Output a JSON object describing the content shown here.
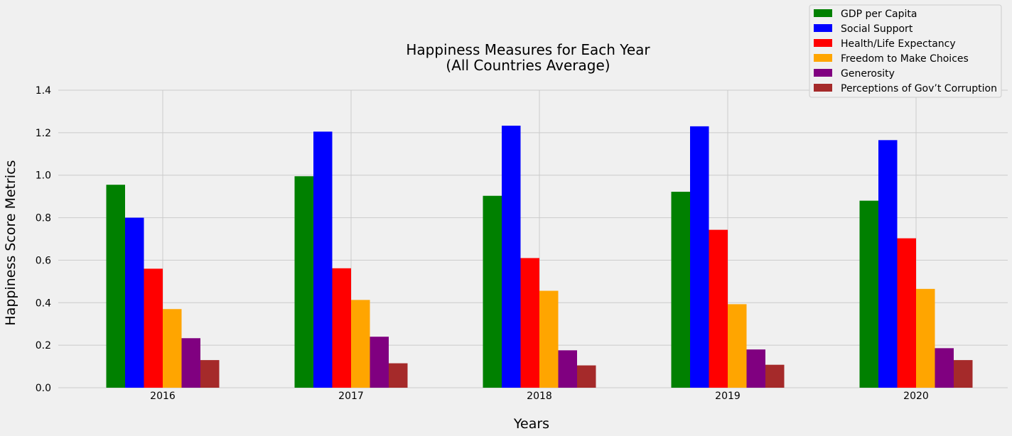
{
  "chart_data": {
    "type": "bar",
    "title": "Happiness Measures for Each Year",
    "subtitle": "(All Countries Average)",
    "xlabel": "Years",
    "ylabel": "Happiness Score Metrics",
    "categories": [
      "2016",
      "2017",
      "2018",
      "2019",
      "2020"
    ],
    "ylim": [
      0,
      1.4
    ],
    "yticks": [
      "0.0",
      "0.2",
      "0.4",
      "0.6",
      "0.8",
      "1.0",
      "1.2",
      "1.4"
    ],
    "grid": true,
    "legend_position": "top-right",
    "series": [
      {
        "name": "GDP per Capita",
        "color": "#008000",
        "values": [
          0.955,
          0.995,
          0.903,
          0.922,
          0.88
        ]
      },
      {
        "name": "Social Support",
        "color": "#0000ff",
        "values": [
          0.8,
          1.205,
          1.233,
          1.23,
          1.165
        ]
      },
      {
        "name": "Health/Life Expectancy",
        "color": "#ff0000",
        "values": [
          0.56,
          0.562,
          0.61,
          0.743,
          0.703
        ]
      },
      {
        "name": "Freedom to Make Choices",
        "color": "#ffa500",
        "values": [
          0.37,
          0.413,
          0.456,
          0.393,
          0.465
        ]
      },
      {
        "name": "Generosity",
        "color": "#800080",
        "values": [
          0.233,
          0.24,
          0.176,
          0.18,
          0.186
        ]
      },
      {
        "name": "Perceptions of Gov’t Corruption",
        "color": "#a52a2a",
        "values": [
          0.13,
          0.115,
          0.105,
          0.108,
          0.13
        ]
      }
    ]
  }
}
